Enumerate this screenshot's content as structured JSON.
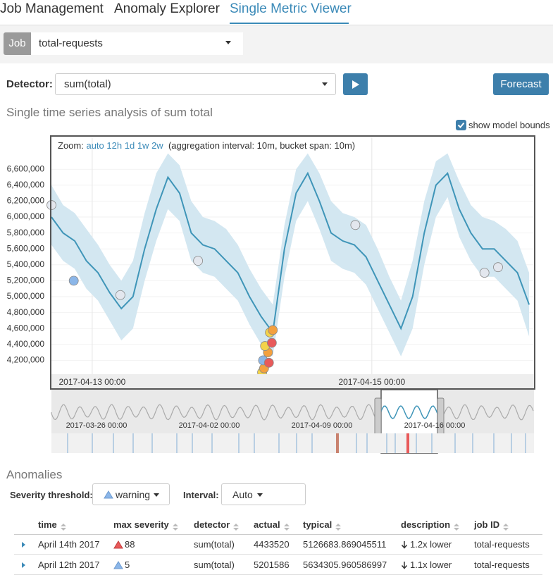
{
  "tabs": [
    "Job Management",
    "Anomaly Explorer",
    "Single Metric Viewer"
  ],
  "job": {
    "label": "Job",
    "value": "total-requests"
  },
  "detector": {
    "label": "Detector:",
    "value": "sum(total)"
  },
  "forecast_button": "Forecast",
  "chart_heading": "Single time series analysis of sum total",
  "show_model_bounds": "show model bounds",
  "zoom": {
    "label": "Zoom:",
    "options": [
      "auto",
      "12h",
      "1d",
      "1w",
      "2w"
    ],
    "note": "(aggregation interval: 10m, bucket span: 10m)"
  },
  "chart_data": {
    "type": "line",
    "color": "#3f95b8",
    "band_color": "#d3e7f1",
    "grid": true,
    "x": [
      "2017-04-12 17:00",
      "2017-04-12 19:00",
      "2017-04-12 21:00",
      "2017-04-12 23:00",
      "2017-04-13 01:00",
      "2017-04-13 03:00",
      "2017-04-13 05:00",
      "2017-04-13 07:00",
      "2017-04-13 09:00",
      "2017-04-13 11:00",
      "2017-04-13 13:00",
      "2017-04-13 15:00",
      "2017-04-13 17:00",
      "2017-04-13 19:00",
      "2017-04-13 21:00",
      "2017-04-13 23:00",
      "2017-04-14 01:00",
      "2017-04-14 03:00",
      "2017-04-14 05:00",
      "2017-04-14 07:00",
      "2017-04-14 09:00",
      "2017-04-14 11:00",
      "2017-04-14 13:00",
      "2017-04-14 15:00",
      "2017-04-14 17:00",
      "2017-04-14 19:00",
      "2017-04-14 21:00",
      "2017-04-14 23:00",
      "2017-04-15 01:00",
      "2017-04-15 03:00",
      "2017-04-15 05:00",
      "2017-04-15 07:00",
      "2017-04-15 09:00",
      "2017-04-15 11:00",
      "2017-04-15 13:00",
      "2017-04-15 15:00",
      "2017-04-15 17:00",
      "2017-04-15 19:00",
      "2017-04-15 21:00",
      "2017-04-15 23:00",
      "2017-04-16 01:00",
      "2017-04-16 03:00"
    ],
    "values": [
      6000000,
      5800000,
      5700000,
      5450000,
      5300000,
      5050000,
      4850000,
      5000000,
      5600000,
      6100000,
      6500000,
      6300000,
      5800000,
      5650000,
      5600000,
      5450000,
      5300000,
      5000000,
      4750000,
      4550000,
      5600000,
      6300000,
      6550000,
      6200000,
      5800000,
      5700000,
      5650000,
      5500000,
      5200000,
      4900000,
      4600000,
      5000000,
      5800000,
      6400000,
      6550000,
      6100000,
      5800000,
      5600000,
      5600000,
      5450000,
      5300000,
      4900000
    ],
    "upper": [
      6400000,
      6150000,
      6050000,
      5850000,
      5650000,
      5400000,
      5200000,
      5450000,
      6050000,
      6550000,
      6800000,
      6650000,
      6200000,
      6000000,
      5950000,
      5850000,
      5650000,
      5350000,
      5100000,
      4900000,
      5900000,
      6600000,
      6800000,
      6550000,
      6200000,
      6050000,
      6000000,
      5900000,
      5600000,
      5250000,
      4950000,
      5450000,
      6200000,
      6700000,
      6800000,
      6450000,
      6150000,
      6000000,
      5950000,
      5850000,
      5700000,
      5300000
    ],
    "lower": [
      5650000,
      5450000,
      5350000,
      5100000,
      4950000,
      4700000,
      4450000,
      4600000,
      5200000,
      5700000,
      6100000,
      5950000,
      5450000,
      5300000,
      5250000,
      5100000,
      4950000,
      4650000,
      4400000,
      4250000,
      5250000,
      5950000,
      6200000,
      5850000,
      5450000,
      5350000,
      5300000,
      5150000,
      4850000,
      4550000,
      4250000,
      4600000,
      5400000,
      6000000,
      6250000,
      5750000,
      5450000,
      5250000,
      5250000,
      5100000,
      4950000,
      4500000
    ],
    "anomalies": {
      "x": [
        "2017-04-12 17:00",
        "2017-04-12 20:50",
        "2017-04-13 04:50",
        "2017-04-13 18:10",
        "2017-04-14 05:10",
        "2017-04-14 05:30",
        "2017-04-14 05:20",
        "2017-04-14 06:20",
        "2017-04-14 06:10",
        "2017-04-14 05:40",
        "2017-04-14 06:50",
        "2017-04-14 06:30",
        "2017-04-14 07:00",
        "2017-04-14 21:10",
        "2017-04-15 19:20",
        "2017-04-15 21:40"
      ],
      "values": [
        6150000,
        5200000,
        5020000,
        5450000,
        4050000,
        4100000,
        4200000,
        4170000,
        4300000,
        4380000,
        4420000,
        4550000,
        4580000,
        5900000,
        5300000,
        5370000
      ],
      "colors": [
        "#e3e7ee",
        "#8bb6e8",
        "#e3e7ee",
        "#e3e7ee",
        "#f3d34a",
        "#f3a03f",
        "#8bb6e8",
        "#e85a5a",
        "#f3a03f",
        "#f3d34a",
        "#e85a5a",
        "#f3d34a",
        "#f3a03f",
        "#e3e7ee",
        "#e3e7ee",
        "#e3e7ee"
      ]
    },
    "xlim": [
      "2017-04-12 17:00",
      "2017-04-16 03:50"
    ],
    "xticks": [
      "2017-04-13 00:00",
      "2017-04-15 00:00"
    ],
    "ylim": [
      4000000,
      7000000
    ],
    "yticks": [
      {
        "value": 4200000,
        "label": "4,200,000"
      },
      {
        "value": 4400000,
        "label": "4,400,000"
      },
      {
        "value": 4600000,
        "label": "4,600,000"
      },
      {
        "value": 4800000,
        "label": "4,800,000"
      },
      {
        "value": 5000000,
        "label": "5,000,000"
      },
      {
        "value": 5200000,
        "label": "5,200,000"
      },
      {
        "value": 5400000,
        "label": "5,400,000"
      },
      {
        "value": 5600000,
        "label": "5,600,000"
      },
      {
        "value": 5800000,
        "label": "5,800,000"
      },
      {
        "value": 6000000,
        "label": "6,000,000"
      },
      {
        "value": 6200000,
        "label": "6,200,000"
      },
      {
        "value": 6400000,
        "label": "6,400,000"
      },
      {
        "value": 6600000,
        "label": "6,600,000"
      }
    ]
  },
  "context_labels": [
    "2017-03-26 00:00",
    "2017-04-02 00:00",
    "2017-04-09 00:00",
    "2017-04-16 00:00"
  ],
  "anomalies_heading": "Anomalies",
  "severity_threshold": {
    "label": "Severity threshold:",
    "value": "warning"
  },
  "interval": {
    "label": "Interval:",
    "value": "Auto"
  },
  "table": {
    "columns": [
      "time",
      "max severity",
      "detector",
      "actual",
      "typical",
      "description",
      "job ID"
    ],
    "rows": [
      [
        "April 14th 2017",
        "88",
        "sum(total)",
        "4433520",
        "5126683.869045511",
        "1.2x lower",
        "total-requests"
      ],
      [
        "April 12th 2017",
        "5",
        "sum(total)",
        "5201586",
        "5634305.960586997",
        "1.1x lower",
        "total-requests"
      ]
    ]
  }
}
